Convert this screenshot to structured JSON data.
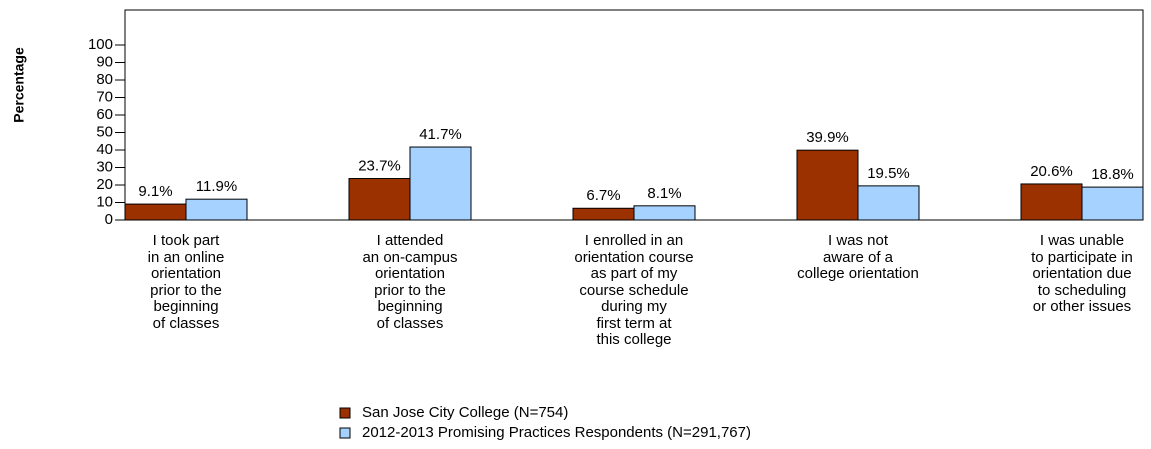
{
  "chart_data": {
    "type": "bar",
    "y_label": "Percentage",
    "categories": [
      "I took part\nin an online\norientation\nprior to the\nbeginning\nof classes",
      "I attended\nan on-campus\norientation\nprior to the\nbeginning\nof classes",
      "I enrolled in an\norientation course\nas part of my\ncourse schedule\nduring my\nfirst term at\nthis college",
      "I was not\naware of a\ncollege orientation",
      "I was unable\nto participate in\norientation due\nto scheduling\nor other issues"
    ],
    "series": [
      {
        "name": "San Jose City College (N=754)",
        "color": "#9c3100",
        "values": [
          9.1,
          23.7,
          6.7,
          39.9,
          20.6
        ],
        "value_labels": [
          "9.1%",
          "23.7%",
          "6.7%",
          "39.9%",
          "20.6%"
        ]
      },
      {
        "name": "2012-2013 Promising Practices Respondents (N=291,767)",
        "color": "#a6d2ff",
        "values": [
          11.9,
          41.7,
          8.1,
          19.5,
          18.8
        ],
        "value_labels": [
          "11.9%",
          "41.7%",
          "8.1%",
          "19.5%",
          "18.8%"
        ]
      }
    ],
    "ylim": [
      0,
      120
    ],
    "yticks": [
      0,
      10,
      20,
      30,
      40,
      50,
      60,
      70,
      80,
      90,
      100
    ],
    "legend": "bottom"
  }
}
